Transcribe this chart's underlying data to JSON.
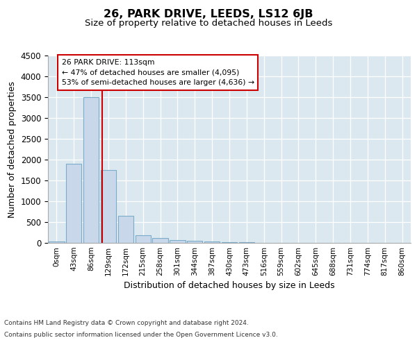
{
  "title": "26, PARK DRIVE, LEEDS, LS12 6JB",
  "subtitle": "Size of property relative to detached houses in Leeds",
  "xlabel": "Distribution of detached houses by size in Leeds",
  "ylabel": "Number of detached properties",
  "bar_labels": [
    "0sqm",
    "43sqm",
    "86sqm",
    "129sqm",
    "172sqm",
    "215sqm",
    "258sqm",
    "301sqm",
    "344sqm",
    "387sqm",
    "430sqm",
    "473sqm",
    "516sqm",
    "559sqm",
    "602sqm",
    "645sqm",
    "688sqm",
    "731sqm",
    "774sqm",
    "817sqm",
    "860sqm"
  ],
  "bar_values": [
    30,
    1900,
    3500,
    1750,
    650,
    190,
    110,
    75,
    50,
    30,
    15,
    10,
    7,
    5,
    3,
    2,
    1,
    0,
    0,
    0,
    0
  ],
  "bar_color": "#c8d8ea",
  "bar_edgecolor": "#7aaBc8",
  "vline_color": "#cc0000",
  "annotation_text": "26 PARK DRIVE: 113sqm\n← 47% of detached houses are smaller (4,095)\n53% of semi-detached houses are larger (4,636) →",
  "ylim": [
    0,
    4500
  ],
  "yticks": [
    0,
    500,
    1000,
    1500,
    2000,
    2500,
    3000,
    3500,
    4000,
    4500
  ],
  "background_color": "#dce8f0",
  "footer_line1": "Contains HM Land Registry data © Crown copyright and database right 2024.",
  "footer_line2": "Contains public sector information licensed under the Open Government Licence v3.0."
}
